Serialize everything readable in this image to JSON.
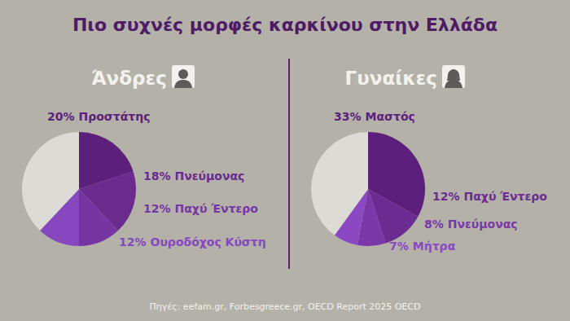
{
  "title": "Πιο συχνές μορφές καρκίνου στην Ελλάδα",
  "source": "Πηγές: eefam.gr, Forbesgreece.gr, OECD Report 2025 OECD",
  "chart_data": [
    {
      "type": "pie",
      "title": "Άνδρες",
      "categories": [
        "Προστάτης",
        "Πνεύμονας",
        "Παχύ Έντερο",
        "Ουροδόχος Κύστη",
        null
      ],
      "values": [
        20,
        18,
        12,
        12,
        38
      ],
      "value_labels": [
        "20%",
        "18%",
        "12%",
        "12%",
        null
      ],
      "colors": [
        "#5c1f7c",
        "#6a2a8e",
        "#7735a3",
        "#8747be",
        "#dddbd6"
      ],
      "data_labels": true
    },
    {
      "type": "pie",
      "title": "Γυναίκες",
      "categories": [
        "Μαστός",
        "Παχύ Έντερο",
        "Πνεύμονας",
        "Μήτρα",
        null
      ],
      "values": [
        33,
        12,
        8,
        7,
        40
      ],
      "value_labels": [
        "33%",
        "12%",
        "8%",
        "7%",
        null
      ],
      "colors": [
        "#5c1f7c",
        "#6b2b90",
        "#7a37a8",
        "#8a49c2",
        "#dddbd6"
      ],
      "data_labels": true
    }
  ]
}
